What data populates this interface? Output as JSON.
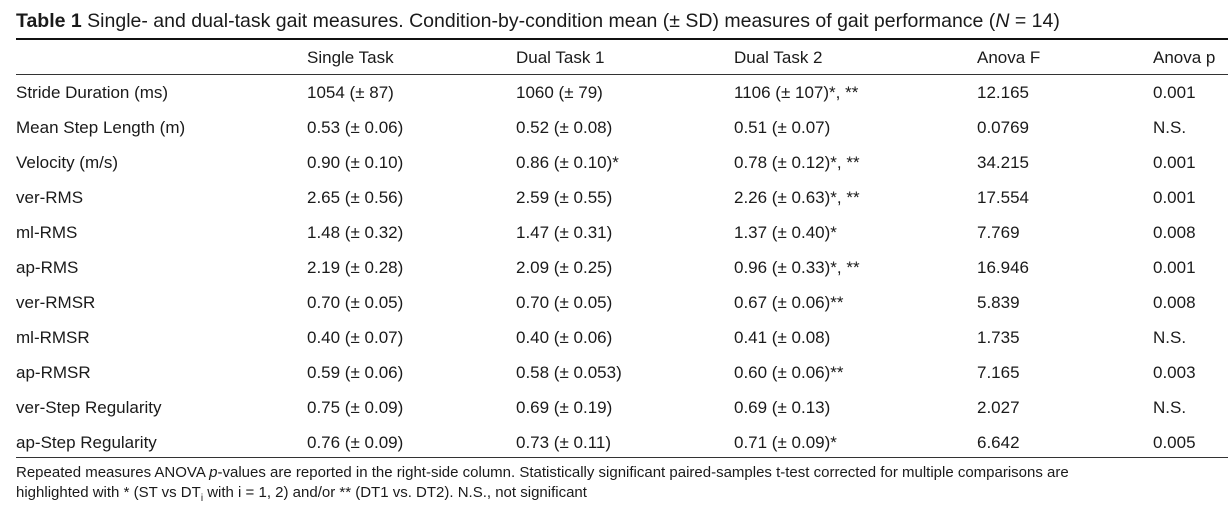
{
  "caption": {
    "label": "Table 1",
    "text_before_n": "Single- and dual-task gait measures. Condition-by-condition mean (± SD) measures of gait performance (",
    "n_symbol": "N",
    "text_after_n": " = 14)"
  },
  "columns": [
    "",
    "Single Task",
    "Dual Task 1",
    "Dual Task 2",
    "Anova F",
    "Anova p"
  ],
  "rows": [
    [
      "Stride Duration (ms)",
      "1054 (± 87)",
      "1060 (± 79)",
      "1106 (± 107)*, **",
      "12.165",
      "0.001"
    ],
    [
      "Mean Step Length (m)",
      "0.53 (± 0.06)",
      "0.52 (± 0.08)",
      "0.51 (± 0.07)",
      "0.0769",
      "N.S."
    ],
    [
      "Velocity (m/s)",
      "0.90 (± 0.10)",
      "0.86 (± 0.10)*",
      "0.78 (± 0.12)*, **",
      "34.215",
      "0.001"
    ],
    [
      "ver-RMS",
      "2.65 (± 0.56)",
      "2.59 (± 0.55)",
      "2.26 (± 0.63)*, **",
      "17.554",
      "0.001"
    ],
    [
      "ml-RMS",
      "1.48 (± 0.32)",
      "1.47 (± 0.31)",
      "1.37 (± 0.40)*",
      "7.769",
      "0.008"
    ],
    [
      "ap-RMS",
      "2.19 (± 0.28)",
      "2.09 (± 0.25)",
      "0.96 (± 0.33)*, **",
      "16.946",
      "0.001"
    ],
    [
      "ver-RMSR",
      "0.70 (± 0.05)",
      "0.70 (± 0.05)",
      "0.67 (± 0.06)**",
      "5.839",
      "0.008"
    ],
    [
      "ml-RMSR",
      "0.40 (± 0.07)",
      "0.40 (± 0.06)",
      "0.41 (± 0.08)",
      "1.735",
      "N.S."
    ],
    [
      "ap-RMSR",
      "0.59 (± 0.06)",
      "0.58 (± 0.053)",
      "0.60 (± 0.06)**",
      "7.165",
      "0.003"
    ],
    [
      "ver-Step Regularity",
      "0.75 (± 0.09)",
      "0.69 (± 0.19)",
      "0.69 (± 0.13)",
      "2.027",
      "N.S."
    ],
    [
      "ap-Step Regularity",
      "0.76 (± 0.09)",
      "0.73 (± 0.11)",
      "0.71 (± 0.09)*",
      "6.642",
      "0.005"
    ]
  ],
  "footnote": {
    "line1_a": "Repeated measures ANOVA ",
    "p_symbol": "p",
    "line1_b": "-values are reported in the right-side column. Statistically significant paired-samples t-test corrected for multiple comparisons are",
    "line2_a": "highlighted with * (ST vs DT",
    "sub_i": "i",
    "line2_b": " with i = 1, 2) and/or ** (DT1 vs. DT2). N.S., not significant"
  }
}
